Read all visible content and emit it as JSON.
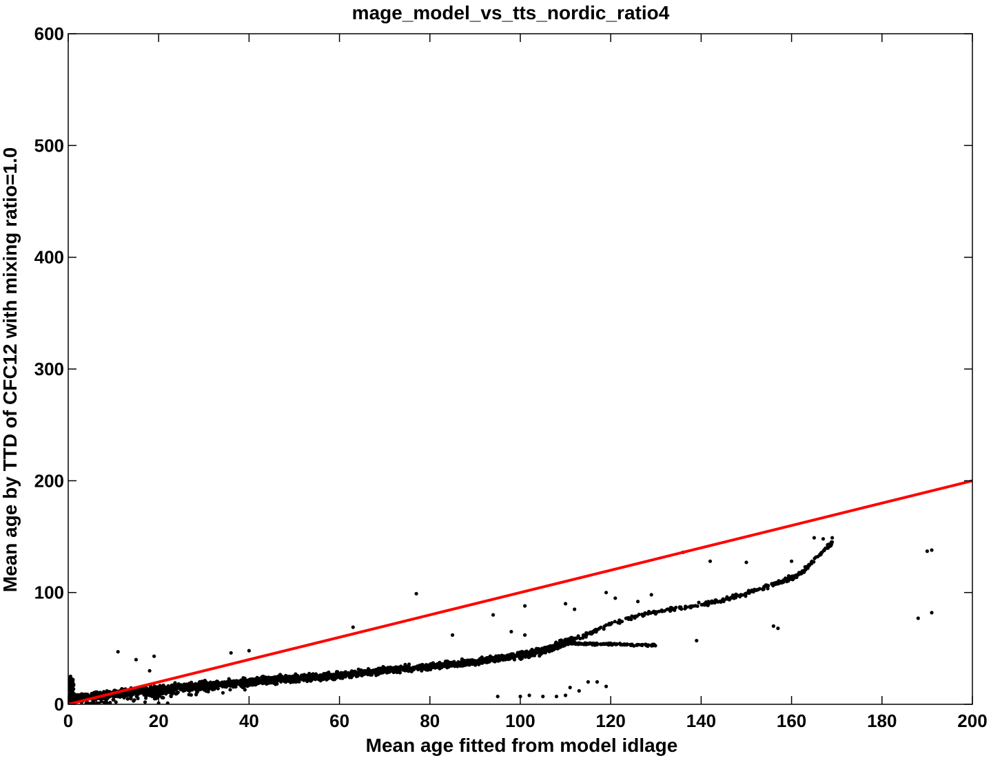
{
  "chart_data": {
    "type": "scatter",
    "title": "mage_model_vs_tts_nordic_ratio4",
    "xlabel": "Mean age fitted from model idlage",
    "ylabel": "Mean age by TTD of CFC12 with mixing ratio=1.0",
    "xlim": [
      0,
      200
    ],
    "ylim": [
      0,
      600
    ],
    "xticks": [
      0,
      20,
      40,
      60,
      80,
      100,
      120,
      140,
      160,
      180,
      200
    ],
    "yticks": [
      0,
      100,
      200,
      300,
      400,
      500,
      600
    ],
    "xtick_labels": [
      "0",
      "20",
      "40",
      "60",
      "80",
      "100",
      "120",
      "140",
      "160",
      "180",
      "200"
    ],
    "ytick_labels": [
      "0",
      "100",
      "200",
      "300",
      "400",
      "500",
      "600"
    ],
    "grid": false,
    "series": [
      {
        "kind": "scatter",
        "color": "#000000",
        "description_trend": [
          [
            0,
            5
          ],
          [
            10,
            9
          ],
          [
            20,
            13
          ],
          [
            30,
            17
          ],
          [
            40,
            20
          ],
          [
            50,
            23
          ],
          [
            60,
            26
          ],
          [
            70,
            30
          ],
          [
            80,
            34
          ],
          [
            90,
            38
          ],
          [
            100,
            44
          ],
          [
            105,
            48
          ],
          [
            110,
            55
          ],
          [
            115,
            63
          ],
          [
            120,
            72
          ],
          [
            125,
            78
          ],
          [
            130,
            83
          ],
          [
            135,
            86
          ],
          [
            140,
            89
          ],
          [
            145,
            94
          ],
          [
            150,
            99
          ],
          [
            155,
            106
          ],
          [
            160,
            113
          ],
          [
            163,
            120
          ],
          [
            165,
            129
          ],
          [
            167,
            137
          ],
          [
            169,
            144
          ]
        ],
        "branch": [
          [
            110,
            55
          ],
          [
            115,
            54
          ],
          [
            120,
            54
          ],
          [
            125,
            53
          ],
          [
            130,
            53
          ]
        ],
        "outliers": [
          [
            0.5,
            25
          ],
          [
            1,
            20
          ],
          [
            11,
            47
          ],
          [
            15,
            40
          ],
          [
            18,
            30
          ],
          [
            19,
            43
          ],
          [
            36,
            46
          ],
          [
            40,
            48
          ],
          [
            63,
            69
          ],
          [
            77,
            99
          ],
          [
            85,
            62
          ],
          [
            94,
            80
          ],
          [
            98,
            65
          ],
          [
            101,
            62
          ],
          [
            103,
            47
          ],
          [
            101,
            88
          ],
          [
            110,
            90
          ],
          [
            112,
            85
          ],
          [
            119,
            100
          ],
          [
            121,
            95
          ],
          [
            126,
            92
          ],
          [
            129,
            98
          ],
          [
            136,
            136
          ],
          [
            139,
            57
          ],
          [
            142,
            128
          ],
          [
            150,
            127
          ],
          [
            156,
            70
          ],
          [
            157,
            68
          ],
          [
            160,
            128
          ],
          [
            163,
            123
          ],
          [
            165,
            149
          ],
          [
            167,
            148
          ],
          [
            169,
            149
          ],
          [
            188,
            77
          ],
          [
            190,
            137
          ],
          [
            191,
            138
          ],
          [
            191,
            82
          ],
          [
            95,
            7
          ],
          [
            100,
            7
          ],
          [
            102,
            8
          ],
          [
            105,
            7
          ],
          [
            108,
            7
          ],
          [
            110,
            8
          ],
          [
            111,
            15
          ],
          [
            113,
            12
          ],
          [
            115,
            20
          ],
          [
            117,
            20
          ],
          [
            119,
            16
          ],
          [
            17,
            2
          ],
          [
            20,
            1
          ],
          [
            22,
            1
          ]
        ]
      },
      {
        "kind": "line",
        "name": "",
        "color": "#ff0000",
        "x": [
          0,
          200
        ],
        "y": [
          0,
          200
        ]
      }
    ]
  }
}
